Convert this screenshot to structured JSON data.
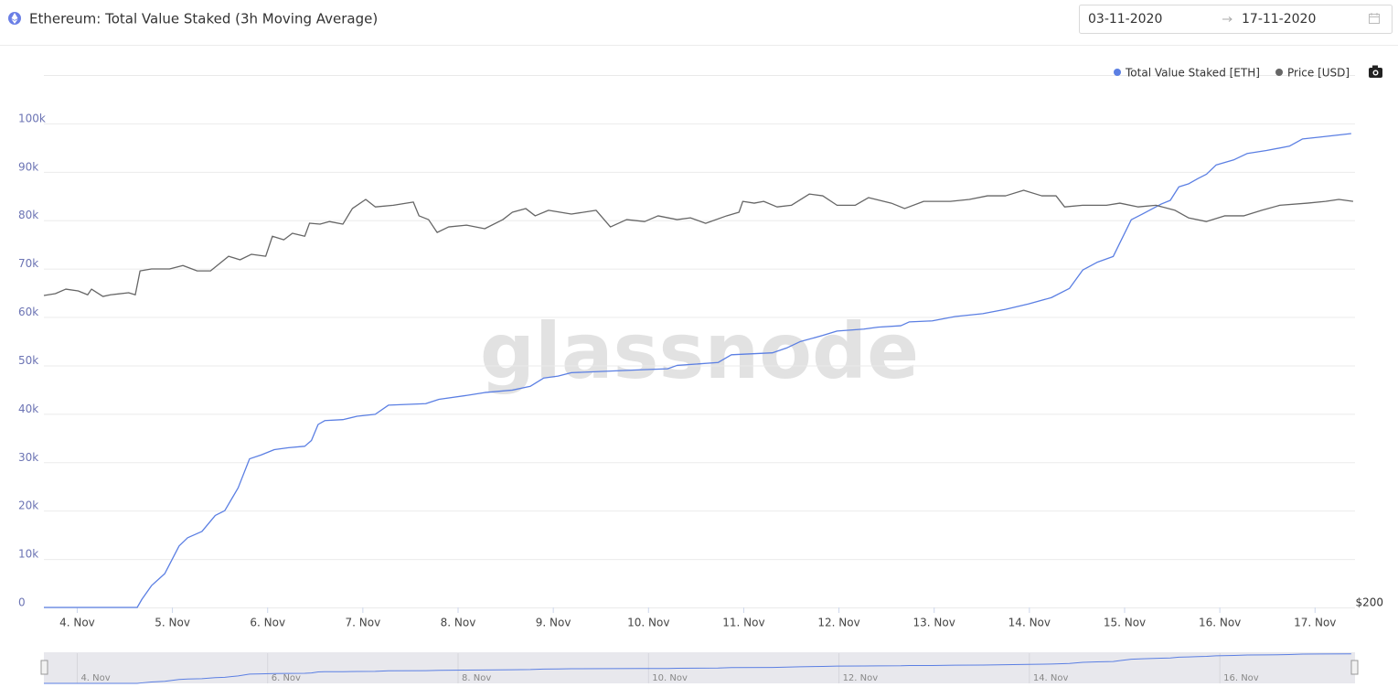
{
  "header": {
    "title": "Ethereum: Total Value Staked (3h Moving Average)",
    "date_from": "03-11-2020",
    "date_to": "17-11-2020"
  },
  "chart_data": {
    "type": "line",
    "watermark": "glassnode",
    "legend": "top-right",
    "grid": true,
    "xlim": [
      3.65,
      17.42
    ],
    "xticks": [
      {
        "value": 4,
        "label": "4. Nov"
      },
      {
        "value": 5,
        "label": "5. Nov"
      },
      {
        "value": 6,
        "label": "6. Nov"
      },
      {
        "value": 7,
        "label": "7. Nov"
      },
      {
        "value": 8,
        "label": "8. Nov"
      },
      {
        "value": 9,
        "label": "9. Nov"
      },
      {
        "value": 10,
        "label": "10. Nov"
      },
      {
        "value": 11,
        "label": "11. Nov"
      },
      {
        "value": 12,
        "label": "12. Nov"
      },
      {
        "value": 13,
        "label": "13. Nov"
      },
      {
        "value": 14,
        "label": "14. Nov"
      },
      {
        "value": 15,
        "label": "15. Nov"
      },
      {
        "value": 16,
        "label": "16. Nov"
      },
      {
        "value": 17,
        "label": "17. Nov"
      }
    ],
    "ylim": [
      0,
      110000
    ],
    "yticks": [
      0,
      {
        "value": 10000,
        "label": "10k"
      },
      {
        "value": 20000,
        "label": "20k"
      },
      {
        "value": 30000,
        "label": "30k"
      },
      {
        "value": 40000,
        "label": "40k"
      },
      {
        "value": 50000,
        "label": "50k"
      },
      {
        "value": 60000,
        "label": "60k"
      },
      {
        "value": 70000,
        "label": "70k"
      },
      {
        "value": 80000,
        "label": "80k"
      },
      {
        "value": 90000,
        "label": "90k"
      },
      {
        "value": 100000,
        "label": "100k"
      }
    ],
    "y2lim": [
      200,
      527
    ],
    "y2ticks": [
      {
        "value": 200,
        "label": "$200"
      }
    ],
    "series": [
      {
        "name": "Total Value Staked [ETH]",
        "color": "#5b7fe3",
        "x": [
          3.65,
          3.9,
          4.2,
          4.5,
          4.63,
          4.68,
          4.78,
          4.92,
          5.07,
          5.16,
          5.31,
          5.45,
          5.55,
          5.69,
          5.81,
          5.93,
          6.07,
          6.22,
          6.39,
          6.46,
          6.53,
          6.6,
          6.79,
          6.94,
          7.13,
          7.27,
          7.66,
          7.8,
          8.09,
          8.28,
          8.57,
          8.76,
          8.9,
          9.05,
          9.19,
          9.91,
          10.2,
          10.3,
          10.73,
          10.87,
          11.3,
          11.45,
          11.59,
          11.83,
          11.98,
          12.26,
          12.41,
          12.65,
          12.74,
          12.98,
          13.22,
          13.51,
          13.75,
          13.99,
          14.23,
          14.42,
          14.56,
          14.71,
          14.88,
          14.95,
          15.07,
          15.19,
          15.38,
          15.48,
          15.57,
          15.67,
          15.77,
          15.86,
          15.96,
          16.15,
          16.29,
          16.49,
          16.73,
          16.87,
          17.06,
          17.38
        ],
        "values": [
          0,
          0,
          0,
          0,
          0,
          1700,
          4500,
          7000,
          12700,
          14400,
          15700,
          19000,
          20000,
          24700,
          30700,
          31500,
          32600,
          33000,
          33300,
          34500,
          37800,
          38600,
          38800,
          39500,
          39900,
          41800,
          42100,
          43000,
          43800,
          44400,
          44900,
          45700,
          47400,
          47800,
          48500,
          49100,
          49300,
          50000,
          50600,
          52200,
          52600,
          53600,
          54900,
          56200,
          57100,
          57500,
          57900,
          58200,
          59000,
          59200,
          60100,
          60700,
          61600,
          62700,
          64000,
          65900,
          69700,
          71300,
          72500,
          75300,
          80100,
          81300,
          83300,
          84100,
          86900,
          87500,
          88600,
          89500,
          91400,
          92500,
          93800,
          94400,
          95300,
          96800,
          97200,
          97900
        ]
      },
      {
        "name": "Price [USD]",
        "color": "#666666",
        "axis": "y2",
        "x": [
          3.65,
          3.77,
          3.88,
          4.01,
          4.11,
          4.15,
          4.27,
          4.35,
          4.54,
          4.61,
          4.66,
          4.78,
          4.97,
          5.11,
          5.26,
          5.4,
          5.59,
          5.71,
          5.83,
          5.98,
          6.05,
          6.17,
          6.26,
          6.39,
          6.44,
          6.55,
          6.65,
          6.79,
          6.89,
          7.03,
          7.13,
          7.32,
          7.53,
          7.59,
          7.69,
          7.78,
          7.9,
          8.09,
          8.28,
          8.47,
          8.57,
          8.71,
          8.81,
          8.95,
          9.19,
          9.45,
          9.6,
          9.77,
          9.96,
          10.1,
          10.3,
          10.44,
          10.6,
          10.82,
          10.95,
          10.99,
          11.11,
          11.21,
          11.35,
          11.5,
          11.69,
          11.83,
          11.98,
          12.17,
          12.31,
          12.55,
          12.69,
          12.89,
          13.17,
          13.37,
          13.56,
          13.75,
          13.94,
          14.13,
          14.28,
          14.37,
          14.56,
          14.81,
          14.95,
          15.14,
          15.33,
          15.53,
          15.67,
          15.86,
          16.05,
          16.25,
          16.44,
          16.63,
          16.92,
          17.11,
          17.25,
          17.4
        ],
        "values": [
          391.6,
          392.7,
          395.5,
          394.4,
          392,
          395.5,
          391,
          392,
          393.3,
          392,
          406.7,
          407.9,
          407.9,
          410,
          406.7,
          406.7,
          415.7,
          413.5,
          416.9,
          415.7,
          428,
          425.8,
          429.8,
          428,
          436,
          435.4,
          437,
          435.4,
          445,
          450.6,
          446,
          447,
          449,
          440.5,
          438.2,
          430.3,
          433.7,
          434.8,
          432.6,
          438.2,
          442.7,
          445,
          440.5,
          443.9,
          441.6,
          443.9,
          433.7,
          438.2,
          437,
          440.5,
          438.2,
          439.3,
          435.9,
          440.5,
          442.7,
          449.4,
          448.3,
          449.4,
          446,
          447,
          453.9,
          452.8,
          447,
          447,
          451.7,
          448.3,
          445,
          449.4,
          449.4,
          450.6,
          452.8,
          452.8,
          456.2,
          452.8,
          452.8,
          446,
          447,
          447,
          448.3,
          446,
          447,
          443.9,
          439.3,
          437,
          440.5,
          440.5,
          443.9,
          447,
          448.3,
          449.4,
          450.6,
          449.4
        ]
      }
    ],
    "navigator": {
      "xticks": [
        {
          "value": 4,
          "label": "4. Nov"
        },
        {
          "value": 6,
          "label": "6. Nov"
        },
        {
          "value": 8,
          "label": "8. Nov"
        },
        {
          "value": 10,
          "label": "10. Nov"
        },
        {
          "value": 12,
          "label": "12. Nov"
        },
        {
          "value": 14,
          "label": "14. Nov"
        },
        {
          "value": 16,
          "label": "16. Nov"
        }
      ]
    }
  }
}
